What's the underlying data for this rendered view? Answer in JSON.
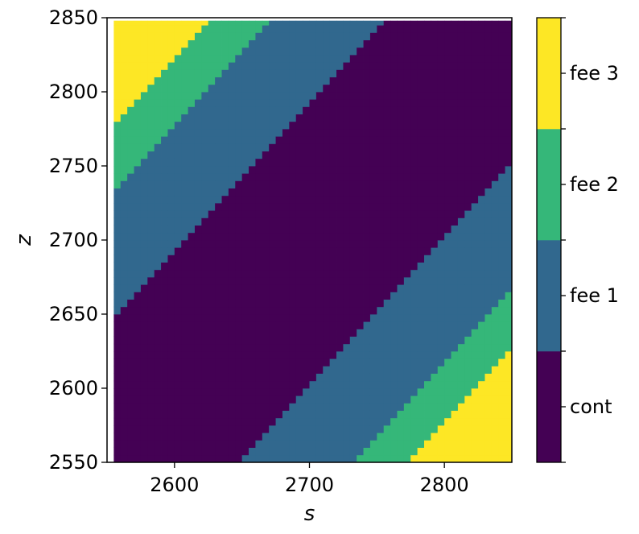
{
  "chart_data": {
    "type": "heatmap",
    "title": "",
    "xlabel": "s",
    "ylabel": "z",
    "xlim": [
      2550,
      2850
    ],
    "ylim": [
      2550,
      2850
    ],
    "x_ticks": [
      2600,
      2700,
      2800
    ],
    "y_ticks": [
      2550,
      2600,
      2650,
      2700,
      2750,
      2800,
      2850
    ],
    "grid": false,
    "x_range": [
      2555,
      2850
    ],
    "y_range": [
      2550,
      2848
    ],
    "bin_width": 5,
    "band_offset": 5,
    "band_period": 100,
    "categories": [
      "cont",
      "fee 1",
      "fee 2",
      "fee 3"
    ],
    "colors": [
      "#440154",
      "#31688e",
      "#35b779",
      "#fde725"
    ],
    "regions": [
      {
        "category": "fee 3",
        "condition": "z - s ≥ 223"
      },
      {
        "category": "fee 2",
        "condition": "180 ≤ z - s < 223"
      },
      {
        "category": "fee 1",
        "condition": "95 ≤ z - s < 180"
      },
      {
        "category": "cont",
        "condition": "-95 ≤ z - s < 95"
      },
      {
        "category": "fee 1",
        "condition": "-180 ≤ z - s < -95"
      },
      {
        "category": "fee 2",
        "condition": "-223 ≤ z - s < -180"
      },
      {
        "category": "fee 3",
        "condition": "z - s < -223"
      }
    ],
    "colorbar": {
      "labels": [
        "cont",
        "fee 1",
        "fee 2",
        "fee 3"
      ],
      "placement": "right"
    }
  }
}
